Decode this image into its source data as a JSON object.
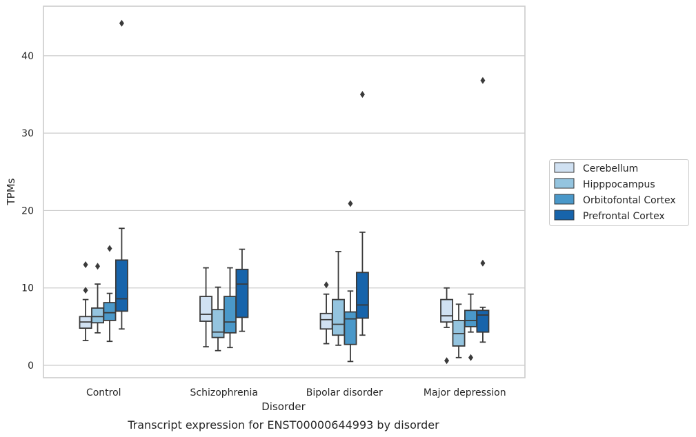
{
  "chart_data": {
    "type": "box",
    "title": "",
    "caption": "Transcript expression for ENST00000644993 by disorder",
    "xlabel": "Disorder",
    "ylabel": "TPMs",
    "ylim": [
      -1.6,
      46.4
    ],
    "yticks": [
      0,
      10,
      20,
      30,
      40
    ],
    "grid": "horizontal",
    "legend_position": "right",
    "categories": [
      "Control",
      "Schizophrenia",
      "Bipolar disorder",
      "Major depression"
    ],
    "series": [
      {
        "name": "Cerebellum",
        "color": "#d0e1f2",
        "boxes": [
          {
            "whislo": 3.2,
            "q1": 4.8,
            "med": 5.6,
            "q3": 6.3,
            "whishi": 8.5,
            "fliers": [
              9.7,
              13.0
            ]
          },
          {
            "whislo": 2.4,
            "q1": 5.7,
            "med": 6.6,
            "q3": 8.9,
            "whishi": 12.6,
            "fliers": []
          },
          {
            "whislo": 2.8,
            "q1": 4.7,
            "med": 5.9,
            "q3": 6.7,
            "whishi": 9.2,
            "fliers": [
              10.4
            ]
          },
          {
            "whislo": 4.9,
            "q1": 5.6,
            "med": 6.4,
            "q3": 8.5,
            "whishi": 10.0,
            "fliers": [
              0.6
            ]
          }
        ]
      },
      {
        "name": "Hipppocampus",
        "color": "#94c4df",
        "boxes": [
          {
            "whislo": 4.2,
            "q1": 5.5,
            "med": 6.3,
            "q3": 7.4,
            "whishi": 10.5,
            "fliers": [
              12.8
            ]
          },
          {
            "whislo": 1.9,
            "q1": 3.6,
            "med": 4.3,
            "q3": 7.2,
            "whishi": 10.1,
            "fliers": []
          },
          {
            "whislo": 2.6,
            "q1": 3.9,
            "med": 5.3,
            "q3": 8.5,
            "whishi": 14.7,
            "fliers": []
          },
          {
            "whislo": 1.0,
            "q1": 2.5,
            "med": 4.1,
            "q3": 5.8,
            "whishi": 7.9,
            "fliers": []
          }
        ]
      },
      {
        "name": "Orbitofontal Cortex",
        "color": "#4a98c9",
        "boxes": [
          {
            "whislo": 3.1,
            "q1": 5.8,
            "med": 6.8,
            "q3": 8.1,
            "whishi": 9.3,
            "fliers": [
              15.1
            ]
          },
          {
            "whislo": 2.3,
            "q1": 4.2,
            "med": 5.6,
            "q3": 8.9,
            "whishi": 12.6,
            "fliers": []
          },
          {
            "whislo": 0.5,
            "q1": 2.7,
            "med": 6.0,
            "q3": 6.9,
            "whishi": 9.6,
            "fliers": [
              20.9
            ]
          },
          {
            "whislo": 4.3,
            "q1": 5.0,
            "med": 5.8,
            "q3": 7.1,
            "whishi": 9.2,
            "fliers": [
              1.0
            ]
          }
        ]
      },
      {
        "name": "Prefrontal Cortex",
        "color": "#1764ab",
        "boxes": [
          {
            "whislo": 4.7,
            "q1": 7.0,
            "med": 8.6,
            "q3": 13.6,
            "whishi": 17.7,
            "fliers": [
              44.2
            ]
          },
          {
            "whislo": 4.4,
            "q1": 6.2,
            "med": 10.5,
            "q3": 12.4,
            "whishi": 15.0,
            "fliers": []
          },
          {
            "whislo": 3.9,
            "q1": 6.1,
            "med": 7.8,
            "q3": 12.0,
            "whishi": 17.2,
            "fliers": [
              35.0
            ]
          },
          {
            "whislo": 3.0,
            "q1": 4.3,
            "med": 6.5,
            "q3": 7.1,
            "whishi": 7.5,
            "fliers": [
              36.8,
              13.2
            ]
          }
        ]
      }
    ]
  }
}
